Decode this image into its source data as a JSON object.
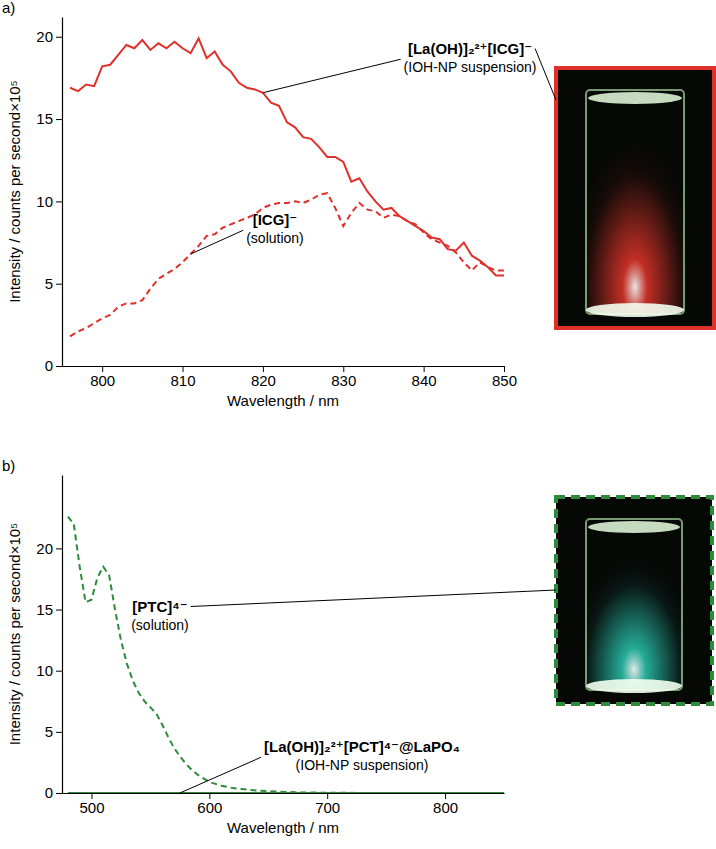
{
  "chart_data": [
    {
      "type": "line",
      "title": "a)",
      "x_label": "Wavelength / nm",
      "y_label": "Intensity / counts per second×10⁵",
      "x": [
        796,
        797,
        798,
        799,
        800,
        801,
        802,
        803,
        804,
        805,
        806,
        807,
        808,
        809,
        810,
        811,
        812,
        813,
        814,
        815,
        816,
        817,
        818,
        819,
        820,
        821,
        822,
        823,
        824,
        825,
        826,
        827,
        828,
        829,
        830,
        831,
        832,
        833,
        834,
        835,
        836,
        837,
        838,
        839,
        840,
        841,
        842,
        843,
        844,
        845,
        846,
        847,
        848,
        849,
        850
      ],
      "xlim": [
        795,
        850
      ],
      "xticks": [
        800,
        810,
        820,
        830,
        840,
        850
      ],
      "ylim": [
        0,
        21.2
      ],
      "yticks": [
        0,
        5,
        10,
        15,
        20
      ],
      "series": [
        {
          "name": "[La(OH)]₂²⁺[ICG]⁻",
          "note": "(IOH-NP suspension)",
          "color": "#e0302b",
          "line_style": "solid",
          "values": [
            16.9,
            16.7,
            17.1,
            17.0,
            18.2,
            18.3,
            18.9,
            19.5,
            19.3,
            19.8,
            19.2,
            19.6,
            19.3,
            19.7,
            19.3,
            19.0,
            19.9,
            18.7,
            19.1,
            18.3,
            17.9,
            17.2,
            16.9,
            16.8,
            16.6,
            16.0,
            15.8,
            14.8,
            14.5,
            13.9,
            13.8,
            13.3,
            12.7,
            12.7,
            12.4,
            11.2,
            11.4,
            10.6,
            10.0,
            9.5,
            9.6,
            9.1,
            8.8,
            8.5,
            8.2,
            7.8,
            7.7,
            7.1,
            7.0,
            7.5,
            6.7,
            6.4,
            6.0,
            5.5,
            5.5
          ]
        },
        {
          "name": "[ICG]⁻",
          "note": "(solution)",
          "color": "#e0302b",
          "line_style": "dashed",
          "values": [
            1.8,
            2.1,
            2.3,
            2.6,
            2.9,
            3.1,
            3.6,
            3.8,
            3.8,
            4.0,
            4.7,
            5.3,
            5.6,
            5.9,
            6.3,
            6.8,
            7.3,
            7.9,
            8.0,
            8.4,
            8.6,
            8.8,
            9.0,
            9.2,
            9.6,
            9.8,
            9.9,
            9.9,
            10.0,
            9.9,
            10.1,
            10.4,
            10.5,
            9.6,
            8.5,
            9.3,
            9.9,
            9.5,
            9.4,
            9.0,
            9.2,
            9.1,
            8.8,
            8.6,
            8.1,
            7.7,
            7.5,
            7.3,
            6.9,
            6.3,
            5.8,
            6.3,
            6.0,
            5.8,
            5.8
          ]
        }
      ]
    },
    {
      "type": "line",
      "title": "b)",
      "x_label": "Wavelength / nm",
      "y_label": "Intensity / counts per second×10⁵",
      "x": [
        480,
        485,
        490,
        495,
        500,
        505,
        510,
        515,
        520,
        525,
        530,
        535,
        540,
        545,
        550,
        555,
        560,
        565,
        570,
        575,
        580,
        585,
        590,
        595,
        600,
        610,
        620,
        630,
        640,
        650,
        660,
        680,
        700,
        750,
        800,
        850
      ],
      "xlim": [
        475,
        850
      ],
      "xticks": [
        500,
        600,
        700,
        800
      ],
      "ylim": [
        0,
        26
      ],
      "yticks": [
        0,
        5,
        10,
        15,
        20
      ],
      "series": [
        {
          "name": "[PTC]⁴⁻",
          "note": "(solution)",
          "color": "#2e8b3a",
          "line_style": "dashed",
          "values": [
            22.6,
            22.0,
            18.5,
            15.6,
            15.8,
            17.6,
            18.5,
            17.8,
            15.0,
            12.5,
            10.6,
            9.2,
            8.2,
            7.5,
            7.0,
            6.5,
            5.6,
            4.6,
            3.7,
            3.0,
            2.4,
            1.9,
            1.5,
            1.2,
            0.9,
            0.6,
            0.4,
            0.3,
            0.2,
            0.15,
            0.1,
            0.05,
            0.02,
            0,
            0,
            0
          ]
        },
        {
          "name": "[La(OH)]₂²⁺[PCT]⁴⁻@LaPO₄",
          "note": "(IOH-NP suspension)",
          "color": "#2e8b3a",
          "line_style": "solid",
          "values": [
            0,
            0,
            0,
            0,
            0,
            0,
            0,
            0,
            0,
            0,
            0,
            0,
            0,
            0,
            0,
            0,
            0,
            0,
            0,
            0,
            0,
            0,
            0,
            0,
            0,
            0,
            0,
            0,
            0,
            0,
            0,
            0,
            0,
            0,
            0,
            0
          ]
        }
      ]
    }
  ]
}
